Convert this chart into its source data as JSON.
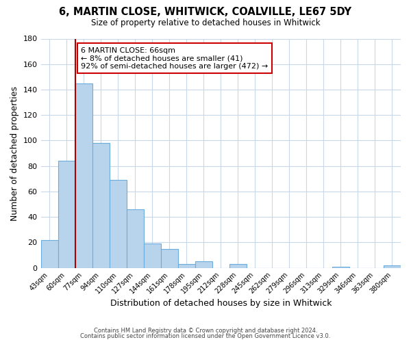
{
  "title": "6, MARTIN CLOSE, WHITWICK, COALVILLE, LE67 5DY",
  "subtitle": "Size of property relative to detached houses in Whitwick",
  "xlabel": "Distribution of detached houses by size in Whitwick",
  "ylabel": "Number of detached properties",
  "bin_labels": [
    "43sqm",
    "60sqm",
    "77sqm",
    "94sqm",
    "110sqm",
    "127sqm",
    "144sqm",
    "161sqm",
    "178sqm",
    "195sqm",
    "212sqm",
    "228sqm",
    "245sqm",
    "262sqm",
    "279sqm",
    "296sqm",
    "313sqm",
    "329sqm",
    "346sqm",
    "363sqm",
    "380sqm"
  ],
  "bar_heights": [
    22,
    84,
    145,
    98,
    69,
    46,
    19,
    15,
    3,
    5,
    0,
    3,
    0,
    0,
    0,
    0,
    0,
    1,
    0,
    0,
    2
  ],
  "bar_color": "#b8d4ec",
  "bar_edge_color": "#6aacdc",
  "marker_color": "#aa0000",
  "annotation_title": "6 MARTIN CLOSE: 66sqm",
  "annotation_line1": "← 8% of detached houses are smaller (41)",
  "annotation_line2": "92% of semi-detached houses are larger (472) →",
  "annotation_box_color": "#ffffff",
  "annotation_box_edge": "#cc0000",
  "ylim": [
    0,
    180
  ],
  "yticks": [
    0,
    20,
    40,
    60,
    80,
    100,
    120,
    140,
    160,
    180
  ],
  "footer_line1": "Contains HM Land Registry data © Crown copyright and database right 2024.",
  "footer_line2": "Contains public sector information licensed under the Open Government Licence v3.0.",
  "bg_color": "#ffffff",
  "grid_color": "#c8d8e8"
}
